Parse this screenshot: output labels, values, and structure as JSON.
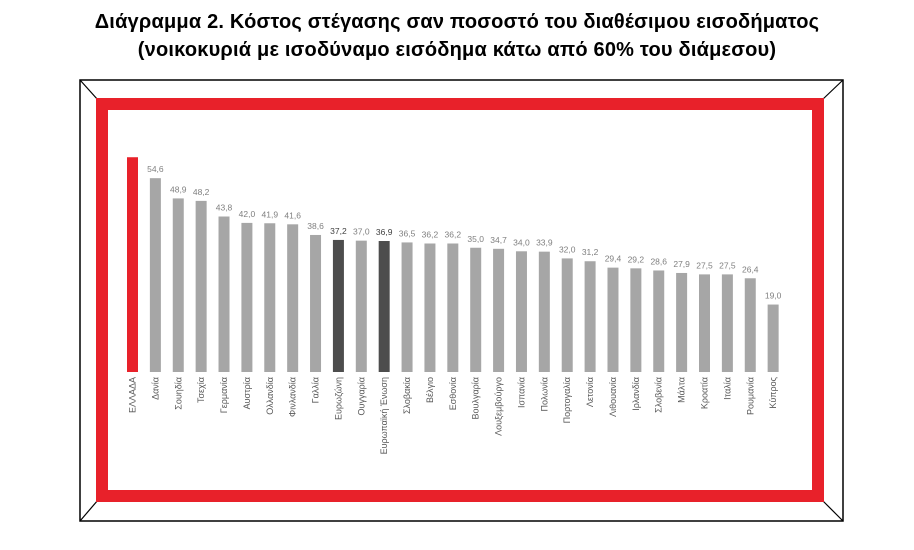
{
  "title_line1": "Διάγραμμα 2. Κόστος στέγασης σαν ποσοστό του διαθέσιμου εισοδήματος",
  "title_line2": "(νοικοκυριά με ισοδύναμο εισόδημα κάτω από 60% του διάμεσου)",
  "colors": {
    "highlight": "#e8212a",
    "aggregate": "#4d4d4d",
    "default": "#a6a6a6",
    "frame_red": "#e8212a",
    "value_label": "#7f7f7f",
    "axis_label": "#595959"
  },
  "chart_data": {
    "type": "bar",
    "title": "Διάγραμμα 2. Κόστος στέγασης σαν ποσοστό του διαθέσιμου εισοδήματος (νοικοκυριά με ισοδύναμο εισόδημα κάτω από 60% του διάμεσου)",
    "categories": [
      "ΕΛΛΑΔΑ",
      "Δανία",
      "Σουηδία",
      "Τσεχία",
      "Γερμανία",
      "Αυστρία",
      "Ολλανδία",
      "Φινλανδία",
      "Γαλλία",
      "Ευρωζώνη",
      "Ουγγαρία",
      "Ευρωπαϊκή Ένωση",
      "Σλοβακία",
      "Βέλγιο",
      "Εσθονία",
      "Βουλγαρία",
      "Λουξεμβούργο",
      "Ισπανία",
      "Πολωνία",
      "Πορτογαλία",
      "Λετονία",
      "Λιθουανία",
      "Ιρλανδία",
      "Σλοβενία",
      "Μάλτα",
      "Κροατία",
      "Ιταλία",
      "Ρουμανία",
      "Κύπρος"
    ],
    "values": [
      null,
      54.6,
      48.9,
      48.2,
      43.8,
      42.0,
      41.9,
      41.6,
      38.6,
      37.2,
      37.0,
      36.9,
      36.5,
      36.2,
      36.2,
      35.0,
      34.7,
      34.0,
      33.9,
      32.0,
      31.2,
      29.4,
      29.2,
      28.6,
      27.9,
      27.5,
      27.5,
      26.4,
      19.0
    ],
    "value_labels": [
      "",
      "54,6",
      "48,9",
      "48,2",
      "43,8",
      "42,0",
      "41,9",
      "41,6",
      "38,6",
      "37,2",
      "37,0",
      "36,9",
      "36,5",
      "36,2",
      "36,2",
      "35,0",
      "34,7",
      "34,0",
      "33,9",
      "32,0",
      "31,2",
      "29,4",
      "29,2",
      "28,6",
      "27,9",
      "27,5",
      "27,5",
      "26,4",
      "19,0"
    ],
    "bar_values": [
      60.5,
      54.6,
      48.9,
      48.2,
      43.8,
      42.0,
      41.9,
      41.6,
      38.6,
      37.2,
      37.0,
      36.9,
      36.5,
      36.2,
      36.2,
      35.0,
      34.7,
      34.0,
      33.9,
      32.0,
      31.2,
      29.4,
      29.2,
      28.6,
      27.9,
      27.5,
      27.5,
      26.4,
      19.0
    ],
    "highlight": [
      "ΕΛΛΑΔΑ"
    ],
    "aggregates": [
      "Ευρωζώνη",
      "Ευρωπαϊκή Ένωση"
    ],
    "ylim": [
      0,
      62
    ],
    "xlabel": "",
    "ylabel": "",
    "grid": false,
    "legend": "none"
  }
}
